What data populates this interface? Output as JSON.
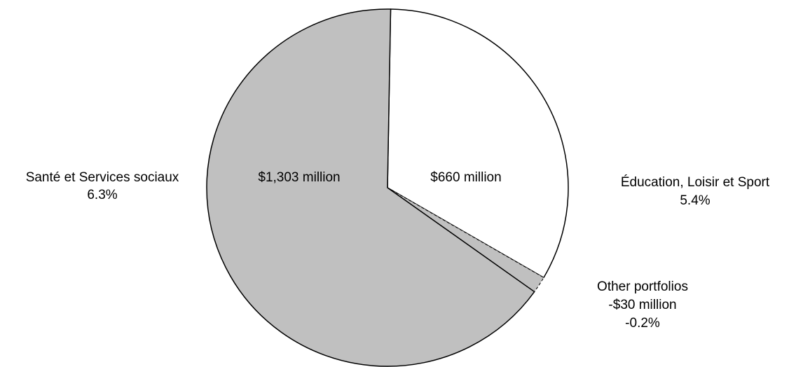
{
  "chart_data": {
    "type": "pie",
    "title": "",
    "unit": "million",
    "slices": [
      {
        "name": "Éducation, Loisir et Sport",
        "value": 660,
        "value_label": "$660 million",
        "percent_label": "5.4%",
        "color": "#ffffff"
      },
      {
        "name": "Other portfolios",
        "value": -30,
        "value_label": "-$30 million",
        "percent_label": "-0.2%",
        "color": "#c0c0c0",
        "outline": "dashed"
      },
      {
        "name": "Santé et Services sociaux",
        "value": 1303,
        "value_label": "$1,303 million",
        "percent_label": "6.3%",
        "color": "#c0c0c0"
      }
    ],
    "legend": "none"
  }
}
